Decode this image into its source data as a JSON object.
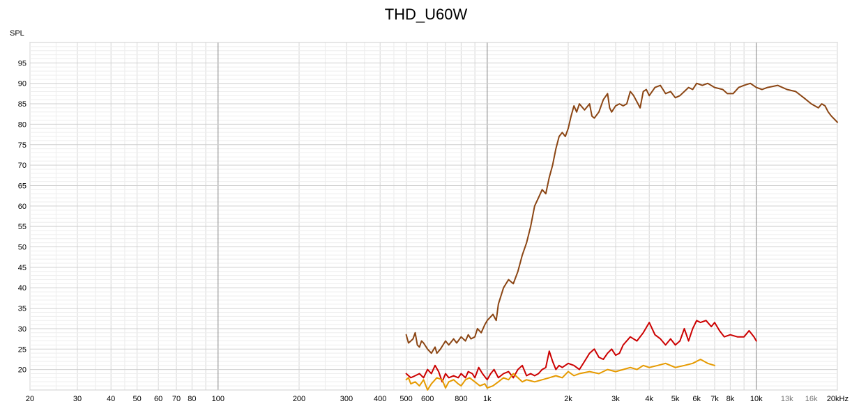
{
  "chart_data": {
    "type": "line",
    "title": "THD_U60W",
    "ylabel": "SPL",
    "xlabel": "",
    "x_scale": "log",
    "xlim": [
      20,
      20000
    ],
    "ylim": [
      15,
      100
    ],
    "grid": true,
    "x_tick_labels": [
      {
        "x": 20,
        "label": "20"
      },
      {
        "x": 30,
        "label": "30"
      },
      {
        "x": 40,
        "label": "40"
      },
      {
        "x": 50,
        "label": "50"
      },
      {
        "x": 60,
        "label": "60"
      },
      {
        "x": 70,
        "label": "70"
      },
      {
        "x": 80,
        "label": "80"
      },
      {
        "x": 100,
        "label": "100"
      },
      {
        "x": 200,
        "label": "200"
      },
      {
        "x": 300,
        "label": "300"
      },
      {
        "x": 400,
        "label": "400"
      },
      {
        "x": 500,
        "label": "500"
      },
      {
        "x": 600,
        "label": "600"
      },
      {
        "x": 800,
        "label": "800"
      },
      {
        "x": 1000,
        "label": "1k"
      },
      {
        "x": 2000,
        "label": "2k"
      },
      {
        "x": 3000,
        "label": "3k"
      },
      {
        "x": 4000,
        "label": "4k"
      },
      {
        "x": 5000,
        "label": "5k"
      },
      {
        "x": 6000,
        "label": "6k"
      },
      {
        "x": 7000,
        "label": "7k"
      },
      {
        "x": 8000,
        "label": "8k"
      },
      {
        "x": 10000,
        "label": "10k"
      },
      {
        "x": 13000,
        "label": "13k"
      },
      {
        "x": 16000,
        "label": "16k"
      },
      {
        "x": 20000,
        "label": "20kHz"
      }
    ],
    "y_ticks": [
      20,
      25,
      30,
      35,
      40,
      45,
      50,
      55,
      60,
      65,
      70,
      75,
      80,
      85,
      90,
      95
    ],
    "series": [
      {
        "color": "#8B4513",
        "points": [
          [
            500,
            28.5
          ],
          [
            510,
            26.5
          ],
          [
            520,
            27
          ],
          [
            530,
            27.5
          ],
          [
            540,
            29
          ],
          [
            550,
            26
          ],
          [
            560,
            25.5
          ],
          [
            570,
            27
          ],
          [
            580,
            26.5
          ],
          [
            600,
            25
          ],
          [
            620,
            24
          ],
          [
            640,
            25.5
          ],
          [
            650,
            24
          ],
          [
            670,
            25
          ],
          [
            700,
            27
          ],
          [
            720,
            26
          ],
          [
            750,
            27.5
          ],
          [
            770,
            26.5
          ],
          [
            800,
            28
          ],
          [
            830,
            27
          ],
          [
            850,
            28.5
          ],
          [
            870,
            27.5
          ],
          [
            900,
            28
          ],
          [
            920,
            30
          ],
          [
            950,
            29
          ],
          [
            980,
            31
          ],
          [
            1000,
            32
          ],
          [
            1050,
            33.5
          ],
          [
            1080,
            32
          ],
          [
            1100,
            36
          ],
          [
            1150,
            40
          ],
          [
            1200,
            42
          ],
          [
            1250,
            41
          ],
          [
            1300,
            44
          ],
          [
            1350,
            48
          ],
          [
            1400,
            51
          ],
          [
            1450,
            55
          ],
          [
            1500,
            60
          ],
          [
            1550,
            62
          ],
          [
            1600,
            64
          ],
          [
            1650,
            63
          ],
          [
            1700,
            67
          ],
          [
            1750,
            70
          ],
          [
            1800,
            74
          ],
          [
            1850,
            77
          ],
          [
            1900,
            78
          ],
          [
            1950,
            77
          ],
          [
            2000,
            79
          ],
          [
            2050,
            82
          ],
          [
            2100,
            84.5
          ],
          [
            2150,
            83
          ],
          [
            2200,
            85
          ],
          [
            2300,
            83.5
          ],
          [
            2400,
            85
          ],
          [
            2450,
            82
          ],
          [
            2500,
            81.5
          ],
          [
            2600,
            83
          ],
          [
            2700,
            86
          ],
          [
            2800,
            87.5
          ],
          [
            2850,
            84
          ],
          [
            2900,
            83
          ],
          [
            3000,
            84.5
          ],
          [
            3100,
            85
          ],
          [
            3200,
            84.5
          ],
          [
            3300,
            85
          ],
          [
            3400,
            88
          ],
          [
            3500,
            87
          ],
          [
            3600,
            85.5
          ],
          [
            3700,
            84
          ],
          [
            3800,
            88
          ],
          [
            3900,
            88.5
          ],
          [
            4000,
            87
          ],
          [
            4200,
            89
          ],
          [
            4400,
            89.5
          ],
          [
            4600,
            87.5
          ],
          [
            4800,
            88
          ],
          [
            5000,
            86.5
          ],
          [
            5200,
            87
          ],
          [
            5400,
            88
          ],
          [
            5600,
            89
          ],
          [
            5800,
            88.5
          ],
          [
            6000,
            90
          ],
          [
            6300,
            89.5
          ],
          [
            6600,
            90
          ],
          [
            7000,
            89
          ],
          [
            7500,
            88.5
          ],
          [
            7800,
            87.5
          ],
          [
            8200,
            87.5
          ],
          [
            8600,
            89
          ],
          [
            9000,
            89.5
          ],
          [
            9500,
            90
          ],
          [
            10000,
            89
          ],
          [
            10500,
            88.5
          ],
          [
            11000,
            89
          ],
          [
            12000,
            89.5
          ],
          [
            13000,
            88.5
          ],
          [
            14000,
            88
          ],
          [
            15000,
            86.5
          ],
          [
            16000,
            85
          ],
          [
            17000,
            84
          ],
          [
            17500,
            85
          ],
          [
            18000,
            84.5
          ],
          [
            18500,
            83
          ],
          [
            19000,
            82
          ],
          [
            20000,
            80.5
          ]
        ]
      },
      {
        "color": "#CC0000",
        "points": [
          [
            500,
            19
          ],
          [
            520,
            18
          ],
          [
            540,
            18.5
          ],
          [
            560,
            19
          ],
          [
            580,
            18
          ],
          [
            600,
            20
          ],
          [
            620,
            19
          ],
          [
            640,
            21
          ],
          [
            660,
            19.5
          ],
          [
            680,
            17
          ],
          [
            700,
            19
          ],
          [
            720,
            18
          ],
          [
            750,
            18.5
          ],
          [
            780,
            18
          ],
          [
            800,
            19
          ],
          [
            830,
            18
          ],
          [
            850,
            19.5
          ],
          [
            880,
            19
          ],
          [
            900,
            18
          ],
          [
            930,
            20.5
          ],
          [
            960,
            19
          ],
          [
            1000,
            17.5
          ],
          [
            1030,
            19
          ],
          [
            1060,
            20
          ],
          [
            1100,
            18
          ],
          [
            1150,
            19
          ],
          [
            1200,
            19.5
          ],
          [
            1250,
            18
          ],
          [
            1300,
            20
          ],
          [
            1350,
            21
          ],
          [
            1400,
            18.5
          ],
          [
            1450,
            19
          ],
          [
            1500,
            18.5
          ],
          [
            1550,
            19
          ],
          [
            1600,
            20
          ],
          [
            1650,
            20.5
          ],
          [
            1700,
            24.5
          ],
          [
            1750,
            22
          ],
          [
            1800,
            20
          ],
          [
            1850,
            21
          ],
          [
            1900,
            20.5
          ],
          [
            2000,
            21.5
          ],
          [
            2100,
            21
          ],
          [
            2200,
            20
          ],
          [
            2300,
            22
          ],
          [
            2400,
            24
          ],
          [
            2500,
            25
          ],
          [
            2600,
            23
          ],
          [
            2700,
            22.5
          ],
          [
            2800,
            24
          ],
          [
            2900,
            25
          ],
          [
            3000,
            23.5
          ],
          [
            3100,
            24
          ],
          [
            3200,
            26
          ],
          [
            3400,
            28
          ],
          [
            3600,
            27
          ],
          [
            3800,
            29
          ],
          [
            4000,
            31.5
          ],
          [
            4200,
            28.5
          ],
          [
            4400,
            27.5
          ],
          [
            4600,
            26
          ],
          [
            4800,
            27.5
          ],
          [
            5000,
            26
          ],
          [
            5200,
            27
          ],
          [
            5400,
            30
          ],
          [
            5600,
            27
          ],
          [
            5800,
            30
          ],
          [
            6000,
            32
          ],
          [
            6200,
            31.5
          ],
          [
            6500,
            32
          ],
          [
            6800,
            30.5
          ],
          [
            7000,
            31.5
          ],
          [
            7300,
            29.5
          ],
          [
            7600,
            28
          ],
          [
            8000,
            28.5
          ],
          [
            8500,
            28
          ],
          [
            9000,
            28
          ],
          [
            9400,
            29.5
          ],
          [
            9800,
            28
          ],
          [
            10000,
            27
          ]
        ]
      },
      {
        "color": "#E69A00",
        "points": [
          [
            500,
            17.5
          ],
          [
            510,
            18
          ],
          [
            520,
            16.5
          ],
          [
            540,
            17
          ],
          [
            560,
            16
          ],
          [
            580,
            17.5
          ],
          [
            600,
            15
          ],
          [
            620,
            16.5
          ],
          [
            650,
            18
          ],
          [
            680,
            17.5
          ],
          [
            700,
            15.5
          ],
          [
            720,
            17
          ],
          [
            750,
            17.5
          ],
          [
            780,
            16.5
          ],
          [
            800,
            16
          ],
          [
            830,
            17.5
          ],
          [
            860,
            18
          ],
          [
            900,
            17
          ],
          [
            940,
            16
          ],
          [
            980,
            16.5
          ],
          [
            1000,
            15.5
          ],
          [
            1050,
            16
          ],
          [
            1100,
            17
          ],
          [
            1150,
            18
          ],
          [
            1200,
            17.5
          ],
          [
            1250,
            19
          ],
          [
            1300,
            18
          ],
          [
            1350,
            17
          ],
          [
            1400,
            17.5
          ],
          [
            1500,
            17
          ],
          [
            1600,
            17.5
          ],
          [
            1700,
            18
          ],
          [
            1800,
            18.5
          ],
          [
            1900,
            18
          ],
          [
            2000,
            19.5
          ],
          [
            2100,
            18.5
          ],
          [
            2200,
            19
          ],
          [
            2400,
            19.5
          ],
          [
            2600,
            19
          ],
          [
            2800,
            20
          ],
          [
            3000,
            19.5
          ],
          [
            3200,
            20
          ],
          [
            3400,
            20.5
          ],
          [
            3600,
            20
          ],
          [
            3800,
            21
          ],
          [
            4000,
            20.5
          ],
          [
            4300,
            21
          ],
          [
            4600,
            21.5
          ],
          [
            5000,
            20.5
          ],
          [
            5400,
            21
          ],
          [
            5800,
            21.5
          ],
          [
            6200,
            22.5
          ],
          [
            6600,
            21.5
          ],
          [
            7000,
            21
          ]
        ]
      }
    ]
  }
}
